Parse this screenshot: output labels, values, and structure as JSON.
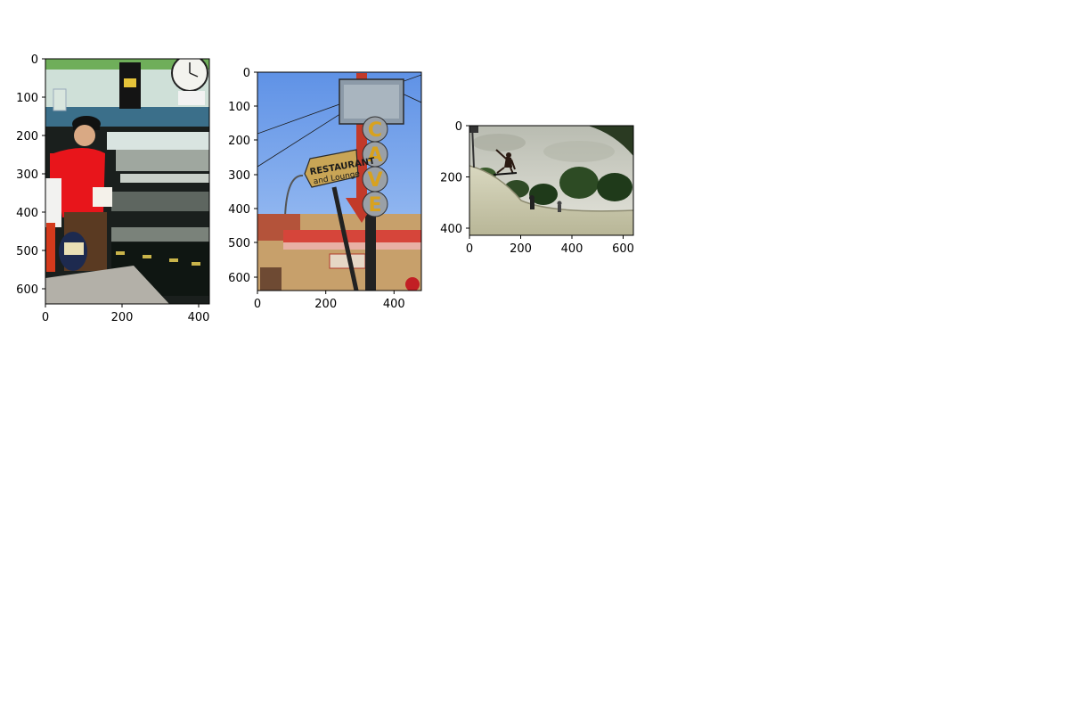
{
  "chart_data": [
    {
      "type": "image",
      "title": "",
      "xlabel": "",
      "ylabel": "",
      "xlim": [
        0,
        427
      ],
      "ylim": [
        640,
        0
      ],
      "xticks": [
        0,
        200,
        400
      ],
      "yticks": [
        0,
        100,
        200,
        300,
        400,
        500,
        600
      ],
      "content": "diner-cook-photo",
      "colors": {
        "sky_wall": "#c9ddd6",
        "shirt": "#e8151b",
        "grill": "#1f2a26",
        "counter": "#b3b0a8"
      }
    },
    {
      "type": "image",
      "title": "",
      "xlabel": "",
      "ylabel": "",
      "xlim": [
        0,
        480
      ],
      "ylim": [
        640,
        0
      ],
      "xticks": [
        0,
        200,
        400
      ],
      "yticks": [
        0,
        100,
        200,
        300,
        400,
        500,
        600
      ],
      "content": "cave-restaurant-sign-photo",
      "sign_texts": {
        "arrow": "CAVE",
        "board_line1": "RESTAURANT",
        "board_line2": "and Lounge"
      },
      "colors": {
        "sky": "#7fb0f0",
        "sign_board": "#c9a556",
        "arrow_red": "#c23a2a",
        "building": "#c7a06b"
      }
    },
    {
      "type": "image",
      "title": "",
      "xlabel": "",
      "ylabel": "",
      "xlim": [
        0,
        640
      ],
      "ylim": [
        427,
        0
      ],
      "xticks": [
        0,
        200,
        400,
        600
      ],
      "yticks": [
        0,
        200,
        400
      ],
      "content": "skateboard-bowl-photo",
      "colors": {
        "sky": "#d8d9cf",
        "ramp": "#c9c8aa",
        "trees": "#1f3a1a"
      }
    }
  ]
}
